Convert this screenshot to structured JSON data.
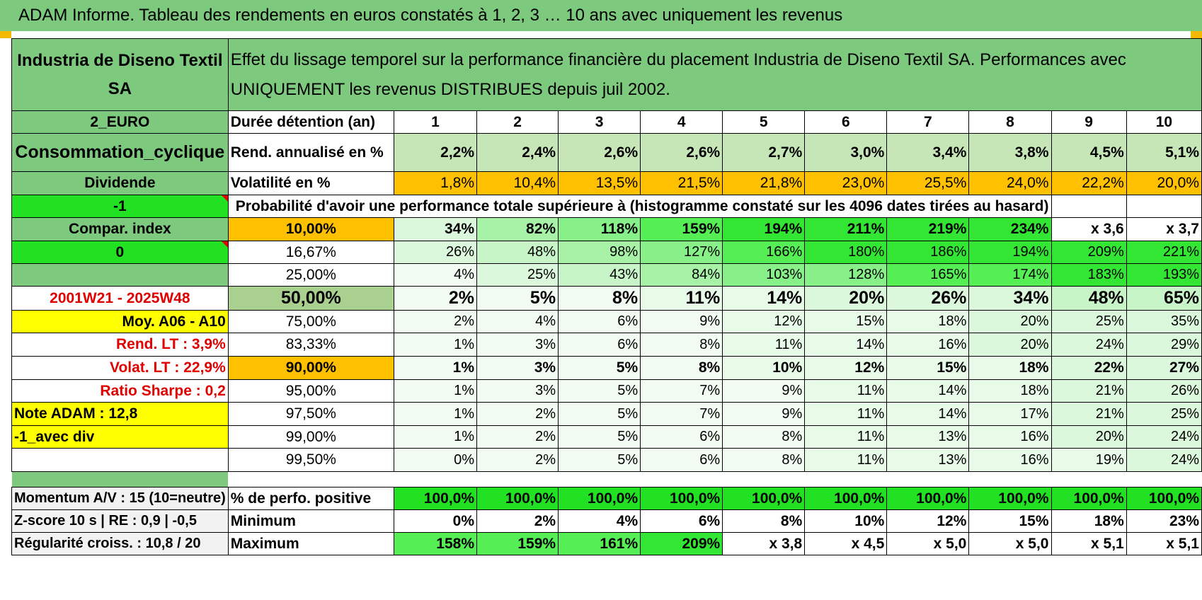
{
  "title": "ADAM Informe. Tableau des rendements en euros constatés à 1, 2, 3 … 10 ans avec uniquement les revenus",
  "header": {
    "name": "Industria de Diseno Textil SA",
    "description": "Effet du lissage temporel sur la performance financière du placement Industria de Diseno Textil SA. Performances avec UNIQUEMENT les revenus DISTRIBUES depuis juil 2002."
  },
  "left": {
    "code": "2_EURO",
    "sector": "Consommation_cyclique",
    "type": "Dividende",
    "param1": "-1",
    "compar": "Compar. index",
    "param2": "0",
    "period": "2001W21 - 2025W48",
    "moy": "Moy. A06 - A10",
    "rend_lt": "Rend. LT :    3,9%",
    "volat_lt": "Volat. LT :    22,9%",
    "sharpe": "Ratio Sharpe :    0,2",
    "note": "Note ADAM : 12,8",
    "avec_div": "-1_avec div",
    "momentum": "Momentum A/V : 15 (10=neutre)",
    "zscore": "Z-score 10 s | RE : 0,9 | -0,5",
    "regularite": "Régularité croiss. : 10,8 / 20"
  },
  "rows": {
    "duree_label": "Durée détention (an)",
    "years": [
      "1",
      "2",
      "3",
      "4",
      "5",
      "6",
      "7",
      "8",
      "9",
      "10"
    ],
    "rend_label": "Rend. annualisé en %",
    "rend": [
      "2,2%",
      "2,4%",
      "2,6%",
      "2,6%",
      "2,7%",
      "3,0%",
      "3,4%",
      "3,8%",
      "4,5%",
      "5,1%"
    ],
    "vol_label": "Volatilité en %",
    "vol": [
      "1,8%",
      "10,4%",
      "13,5%",
      "21,5%",
      "21,8%",
      "23,0%",
      "25,5%",
      "24,0%",
      "22,2%",
      "20,0%"
    ],
    "prob_label": "Probabilité d'avoir une performance totale supérieure à (histogramme constaté sur les 4096 dates tirées au hasard)"
  },
  "probs": [
    {
      "pct": "10,00%",
      "vals": [
        "34%",
        "82%",
        "118%",
        "159%",
        "194%",
        "211%",
        "219%",
        "234%",
        "x 3,6",
        "x 3,7"
      ]
    },
    {
      "pct": "16,67%",
      "vals": [
        "26%",
        "48%",
        "98%",
        "127%",
        "166%",
        "180%",
        "186%",
        "194%",
        "209%",
        "221%"
      ]
    },
    {
      "pct": "25,00%",
      "vals": [
        "4%",
        "25%",
        "43%",
        "84%",
        "103%",
        "128%",
        "165%",
        "174%",
        "183%",
        "193%"
      ]
    },
    {
      "pct": "50,00%",
      "vals": [
        "2%",
        "5%",
        "8%",
        "11%",
        "14%",
        "20%",
        "26%",
        "34%",
        "48%",
        "65%"
      ]
    },
    {
      "pct": "75,00%",
      "vals": [
        "2%",
        "4%",
        "6%",
        "9%",
        "12%",
        "15%",
        "18%",
        "20%",
        "25%",
        "35%"
      ]
    },
    {
      "pct": "83,33%",
      "vals": [
        "1%",
        "3%",
        "6%",
        "8%",
        "11%",
        "14%",
        "16%",
        "20%",
        "24%",
        "29%"
      ]
    },
    {
      "pct": "90,00%",
      "vals": [
        "1%",
        "3%",
        "5%",
        "8%",
        "10%",
        "12%",
        "15%",
        "18%",
        "22%",
        "27%"
      ]
    },
    {
      "pct": "95,00%",
      "vals": [
        "1%",
        "3%",
        "5%",
        "7%",
        "9%",
        "11%",
        "14%",
        "18%",
        "21%",
        "26%"
      ]
    },
    {
      "pct": "97,50%",
      "vals": [
        "1%",
        "2%",
        "5%",
        "7%",
        "9%",
        "11%",
        "14%",
        "17%",
        "21%",
        "25%"
      ]
    },
    {
      "pct": "99,00%",
      "vals": [
        "1%",
        "2%",
        "5%",
        "6%",
        "8%",
        "11%",
        "13%",
        "16%",
        "20%",
        "24%"
      ]
    },
    {
      "pct": "99,50%",
      "vals": [
        "0%",
        "2%",
        "5%",
        "6%",
        "8%",
        "11%",
        "13%",
        "16%",
        "19%",
        "24%"
      ]
    }
  ],
  "bottom": [
    {
      "label": "% de perfo. positive",
      "vals": [
        "100,0%",
        "100,0%",
        "100,0%",
        "100,0%",
        "100,0%",
        "100,0%",
        "100,0%",
        "100,0%",
        "100,0%",
        "100,0%"
      ]
    },
    {
      "label": "Minimum",
      "vals": [
        "0%",
        "2%",
        "4%",
        "6%",
        "8%",
        "10%",
        "12%",
        "15%",
        "18%",
        "23%"
      ]
    },
    {
      "label": "Maximum",
      "vals": [
        "158%",
        "159%",
        "161%",
        "209%",
        "x 3,8",
        "x 4,5",
        "x 5,0",
        "x 5,0",
        "x 5,1",
        "x 5,1"
      ]
    }
  ],
  "colors": {
    "header_green": "#7dc97e",
    "bright_green": "#22e022",
    "orange": "#ffc000",
    "yellow": "#ffff00",
    "red_text": "#e00000"
  }
}
